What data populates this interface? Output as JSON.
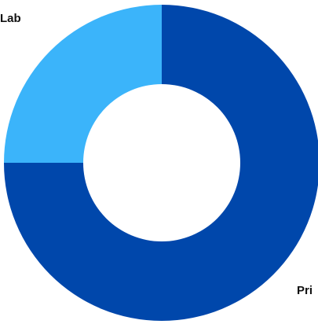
{
  "chart_data": {
    "type": "pie",
    "donut": true,
    "slices": [
      {
        "label": "Pri",
        "value": 75,
        "color": "#0047AB"
      },
      {
        "label": "Lab",
        "value": 25,
        "color": "#3BB4FA"
      }
    ],
    "legend": "none",
    "grid": false
  }
}
